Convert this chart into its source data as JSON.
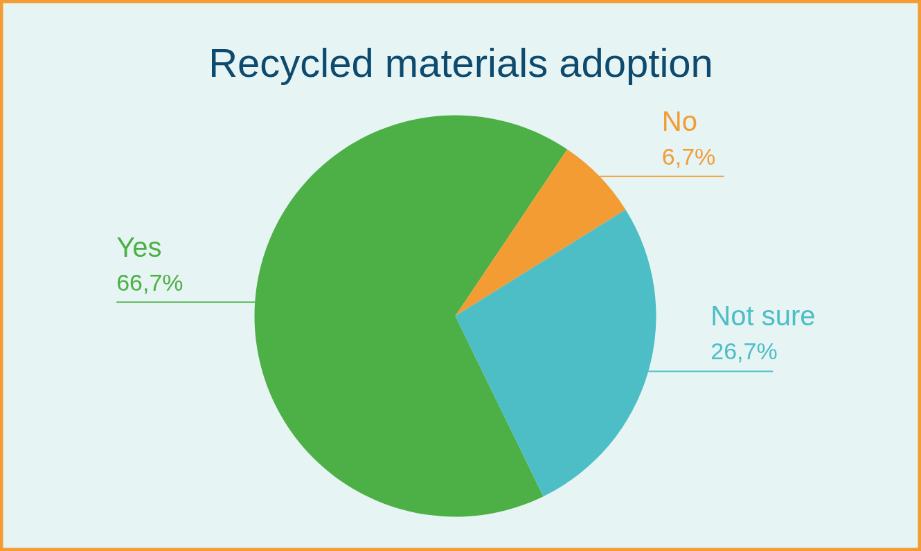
{
  "chart_data": {
    "type": "pie",
    "title": "Recycled materials adoption",
    "categories": [
      "Yes",
      "No",
      "Not sure"
    ],
    "values": [
      66.7,
      6.7,
      26.7
    ],
    "value_labels": [
      "66,7%",
      "6,7%",
      "26,7%"
    ],
    "colors": [
      "#4db046",
      "#f39c34",
      "#4dbec6"
    ]
  }
}
